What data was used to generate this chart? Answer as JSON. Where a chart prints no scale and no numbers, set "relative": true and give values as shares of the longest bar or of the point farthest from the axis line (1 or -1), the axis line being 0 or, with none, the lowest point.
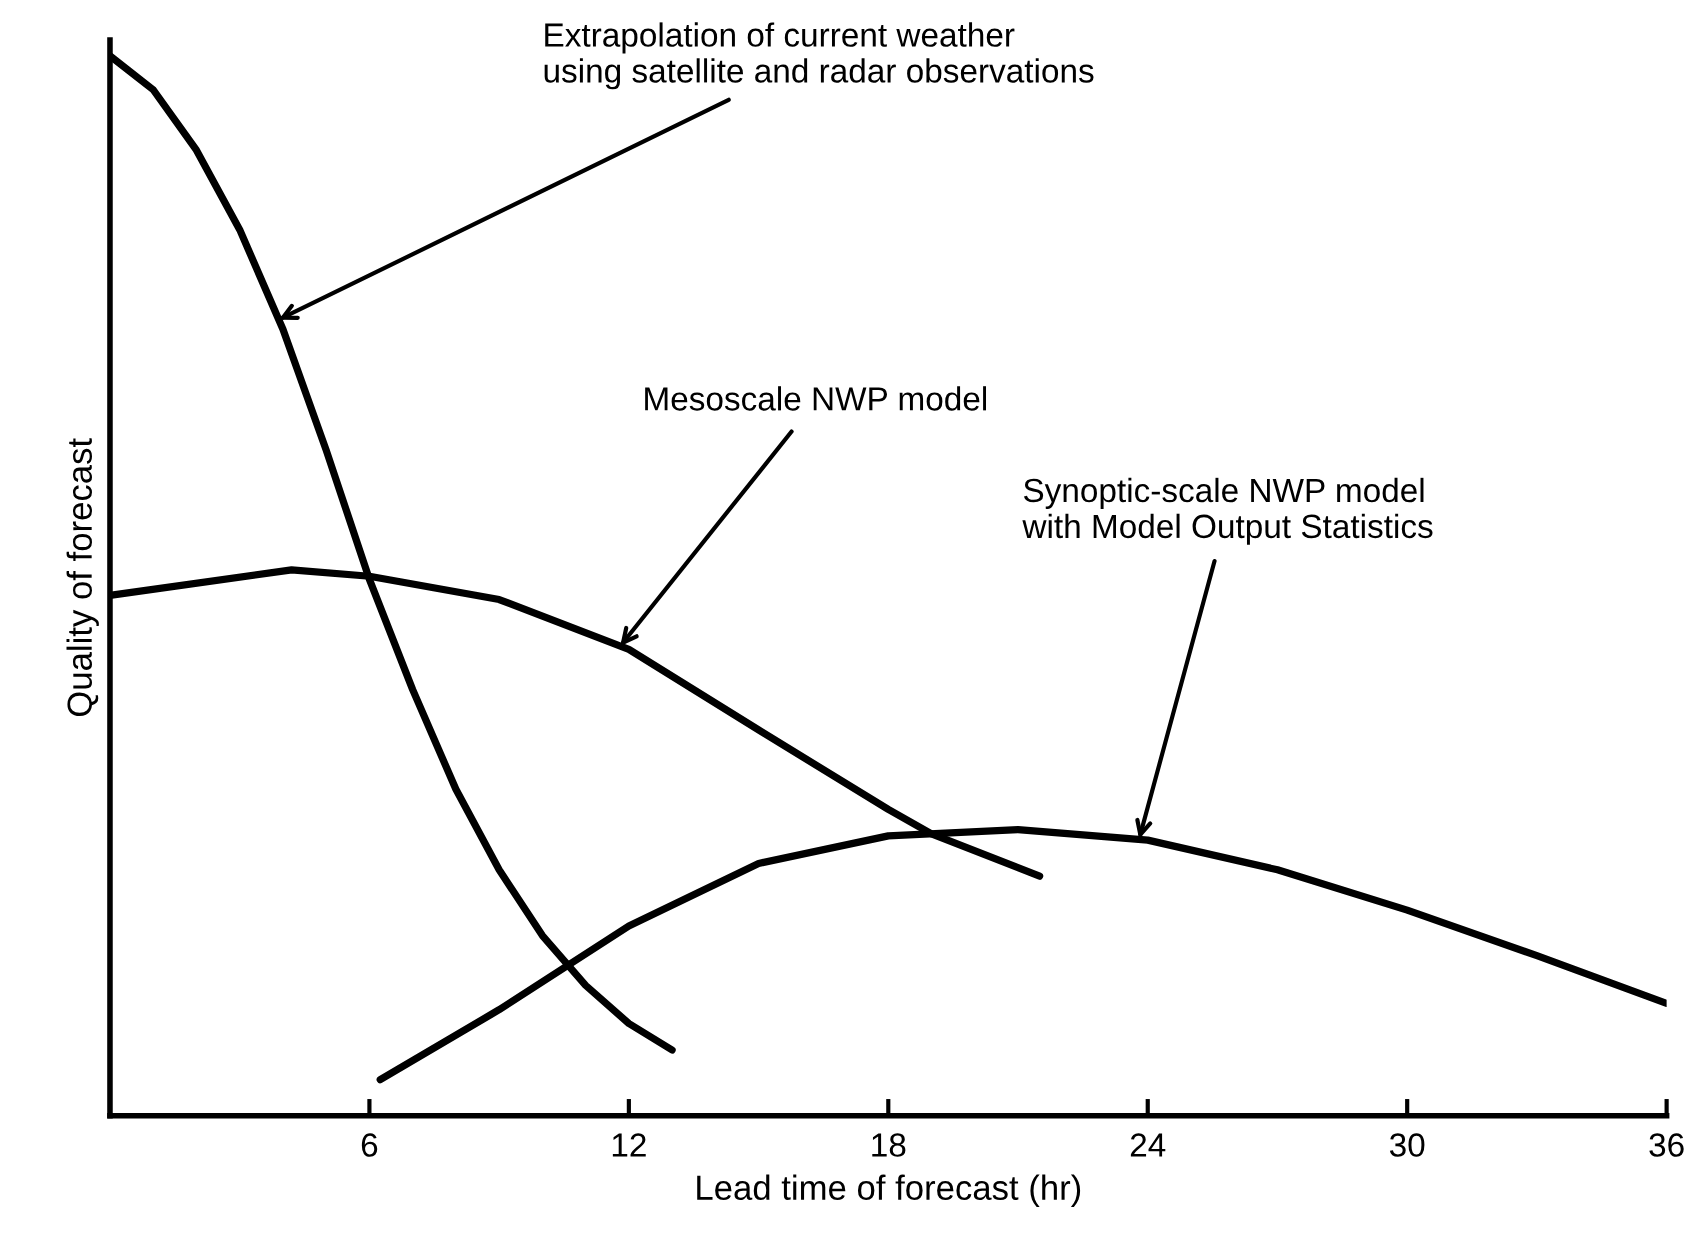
{
  "chart_data": {
    "type": "line",
    "relative": true,
    "xlabel": "Lead time of forecast (hr)",
    "ylabel": "Quality of forecast",
    "xlim": [
      0,
      36
    ],
    "xticks": [
      6,
      12,
      18,
      24,
      30,
      36
    ],
    "grid": false,
    "legend": false,
    "marker": "none",
    "line_style": "solid",
    "series": [
      {
        "color": "#000000",
        "x": [
          0,
          1,
          2,
          3,
          4,
          5,
          6,
          7,
          8,
          9,
          10,
          11,
          12,
          13
        ],
        "values": [
          1.0,
          0.968,
          0.911,
          0.836,
          0.742,
          0.628,
          0.506,
          0.402,
          0.308,
          0.232,
          0.17,
          0.123,
          0.087,
          0.062
        ]
      },
      {
        "color": "#000000",
        "x": [
          0,
          4.2,
          6,
          9,
          12,
          15,
          18,
          19,
          21.5
        ],
        "values": [
          0.491,
          0.515,
          0.509,
          0.487,
          0.44,
          0.364,
          0.289,
          0.266,
          0.226
        ]
      },
      {
        "color": "#000000",
        "x": [
          6.25,
          9,
          12,
          15,
          18,
          21,
          24,
          27,
          30,
          33,
          36
        ],
        "values": [
          0.034,
          0.1,
          0.179,
          0.238,
          0.264,
          0.27,
          0.26,
          0.232,
          0.194,
          0.151,
          0.106
        ]
      }
    ],
    "annotations": [
      {
        "text": "Extrapolation of current weather\nusing satellite and radar observations",
        "x": 3.9,
        "y": 0.751
      },
      {
        "text": "Mesoscale NWP model",
        "x": 11.8,
        "y": 0.443
      },
      {
        "text": "Synoptic-scale NWP model\nwith Model Output Statistics",
        "x": 23.8,
        "y": 0.261
      }
    ]
  }
}
